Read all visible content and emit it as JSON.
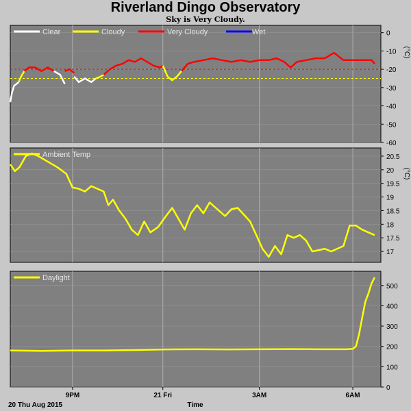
{
  "title": "Riverland Dingo Observatory",
  "subtitle": "Sky is Very Cloudy.",
  "bottom": {
    "date_label": "20 Thu Aug 2015",
    "axis_label": "Time"
  },
  "x_ticks": [
    {
      "t": 2.0,
      "label": "9PM"
    },
    {
      "t": 4.9,
      "label": "21 Fri"
    },
    {
      "t": 8.0,
      "label": "3AM"
    },
    {
      "t": 11.0,
      "label": "6AM"
    }
  ],
  "chart_data": [
    {
      "type": "line",
      "name": "sky",
      "legend": [
        "Clear",
        "Cloudy",
        "Very Cloudy",
        "Wet"
      ],
      "unit": "(°C)",
      "ylim": [
        -60,
        4
      ],
      "y_ticks": [
        0,
        -10,
        -20,
        -30,
        -40,
        -50,
        -60
      ],
      "thresholds": [
        {
          "value": -20,
          "color": "#ff0000"
        },
        {
          "value": -25,
          "color": "#ffff00"
        }
      ],
      "series": [
        {
          "name": "Clear",
          "color": "#ffffff",
          "points": [
            [
              0.0,
              -38
            ],
            [
              0.05,
              -33
            ],
            [
              0.12,
              -29
            ],
            [
              0.2,
              -28
            ],
            [
              0.27,
              -27
            ]
          ]
        },
        {
          "name": "Cloudy",
          "color": "#ffff00",
          "points": [
            [
              0.27,
              -27
            ],
            [
              0.32,
              -25
            ],
            [
              0.38,
              -23
            ],
            [
              0.45,
              -21
            ]
          ]
        },
        {
          "name": "Very Cloudy",
          "color": "#ff0000",
          "points": [
            [
              0.45,
              -21
            ],
            [
              0.6,
              -19
            ],
            [
              0.8,
              -19
            ],
            [
              1.0,
              -21
            ],
            [
              1.2,
              -19
            ],
            [
              1.4,
              -21
            ]
          ]
        },
        {
          "name": "Clear",
          "color": "#ffffff",
          "points": [
            [
              1.4,
              -21
            ],
            [
              1.6,
              -23
            ],
            [
              1.75,
              -28
            ]
          ]
        },
        {
          "name": "Very Cloudy",
          "color": "#ff0000",
          "points": [
            [
              1.75,
              -21
            ],
            [
              1.9,
              -20
            ],
            [
              2.05,
              -22
            ]
          ]
        },
        {
          "name": "Clear",
          "color": "#ffffff",
          "points": [
            [
              2.05,
              -24
            ],
            [
              2.2,
              -27
            ],
            [
              2.4,
              -25
            ],
            [
              2.6,
              -27
            ],
            [
              2.75,
              -25
            ]
          ]
        },
        {
          "name": "Cloudy",
          "color": "#ffff00",
          "points": [
            [
              2.75,
              -25
            ],
            [
              2.9,
              -24
            ],
            [
              3.0,
              -23
            ]
          ]
        },
        {
          "name": "Very Cloudy",
          "color": "#ff0000",
          "points": [
            [
              3.0,
              -23
            ],
            [
              3.2,
              -20
            ],
            [
              3.4,
              -18
            ],
            [
              3.6,
              -17
            ],
            [
              3.8,
              -15
            ],
            [
              4.0,
              -16
            ],
            [
              4.2,
              -14
            ],
            [
              4.4,
              -16
            ],
            [
              4.6,
              -18
            ],
            [
              4.8,
              -19
            ],
            [
              4.9,
              -18
            ]
          ]
        },
        {
          "name": "Cloudy",
          "color": "#ffff00",
          "points": [
            [
              4.9,
              -18
            ],
            [
              5.05,
              -24
            ],
            [
              5.2,
              -26
            ],
            [
              5.35,
              -24
            ],
            [
              5.5,
              -21
            ]
          ]
        },
        {
          "name": "Very Cloudy",
          "color": "#ff0000",
          "points": [
            [
              5.5,
              -21
            ],
            [
              5.7,
              -17
            ],
            [
              5.9,
              -16
            ],
            [
              6.2,
              -15
            ],
            [
              6.5,
              -14
            ],
            [
              6.8,
              -15
            ],
            [
              7.1,
              -16
            ],
            [
              7.4,
              -15
            ],
            [
              7.7,
              -16
            ],
            [
              8.0,
              -15
            ],
            [
              8.3,
              -15
            ],
            [
              8.55,
              -14
            ],
            [
              8.8,
              -16
            ],
            [
              9.0,
              -19
            ],
            [
              9.2,
              -16
            ],
            [
              9.5,
              -15
            ],
            [
              9.8,
              -14
            ],
            [
              10.1,
              -14
            ],
            [
              10.4,
              -11
            ],
            [
              10.7,
              -15
            ],
            [
              11.0,
              -15
            ],
            [
              11.3,
              -15
            ],
            [
              11.6,
              -15
            ],
            [
              11.7,
              -17
            ]
          ]
        }
      ]
    },
    {
      "type": "line",
      "name": "ambient",
      "legend": [
        "Ambient Temp"
      ],
      "unit": "(°C)",
      "ylim": [
        16.6,
        20.8
      ],
      "y_ticks": [
        20.5,
        20.0,
        19.5,
        19.0,
        18.5,
        18.0,
        17.5,
        17.0
      ],
      "series": [
        {
          "name": "Ambient Temp",
          "color": "#ffff00",
          "points": [
            [
              0.0,
              20.2
            ],
            [
              0.15,
              19.95
            ],
            [
              0.3,
              20.1
            ],
            [
              0.5,
              20.5
            ],
            [
              0.7,
              20.6
            ],
            [
              0.9,
              20.5
            ],
            [
              1.2,
              20.3
            ],
            [
              1.5,
              20.1
            ],
            [
              1.8,
              19.85
            ],
            [
              2.0,
              19.35
            ],
            [
              2.2,
              19.3
            ],
            [
              2.4,
              19.2
            ],
            [
              2.6,
              19.4
            ],
            [
              2.8,
              19.3
            ],
            [
              3.0,
              19.2
            ],
            [
              3.15,
              18.7
            ],
            [
              3.3,
              18.9
            ],
            [
              3.5,
              18.5
            ],
            [
              3.7,
              18.2
            ],
            [
              3.9,
              17.8
            ],
            [
              4.1,
              17.6
            ],
            [
              4.3,
              18.1
            ],
            [
              4.5,
              17.7
            ],
            [
              4.75,
              17.9
            ],
            [
              5.0,
              18.3
            ],
            [
              5.2,
              18.6
            ],
            [
              5.4,
              18.2
            ],
            [
              5.6,
              17.8
            ],
            [
              5.8,
              18.4
            ],
            [
              6.0,
              18.7
            ],
            [
              6.2,
              18.4
            ],
            [
              6.4,
              18.8
            ],
            [
              6.7,
              18.5
            ],
            [
              6.9,
              18.3
            ],
            [
              7.1,
              18.55
            ],
            [
              7.3,
              18.6
            ],
            [
              7.5,
              18.35
            ],
            [
              7.7,
              18.1
            ],
            [
              7.9,
              17.6
            ],
            [
              8.1,
              17.1
            ],
            [
              8.3,
              16.8
            ],
            [
              8.5,
              17.2
            ],
            [
              8.7,
              16.9
            ],
            [
              8.9,
              17.6
            ],
            [
              9.1,
              17.5
            ],
            [
              9.3,
              17.6
            ],
            [
              9.5,
              17.4
            ],
            [
              9.7,
              17.0
            ],
            [
              9.9,
              17.05
            ],
            [
              10.1,
              17.1
            ],
            [
              10.3,
              17.0
            ],
            [
              10.5,
              17.1
            ],
            [
              10.7,
              17.2
            ],
            [
              10.9,
              17.95
            ],
            [
              11.1,
              17.95
            ],
            [
              11.3,
              17.8
            ],
            [
              11.5,
              17.7
            ],
            [
              11.7,
              17.6
            ]
          ]
        }
      ]
    },
    {
      "type": "line",
      "name": "daylight",
      "legend": [
        "Daylight"
      ],
      "unit": "",
      "ylim": [
        0,
        570
      ],
      "y_ticks": [
        500,
        400,
        300,
        200,
        100,
        0
      ],
      "series": [
        {
          "name": "Daylight",
          "color": "#ffff00",
          "points": [
            [
              0.0,
              180
            ],
            [
              1.0,
              178
            ],
            [
              2.0,
              180
            ],
            [
              3.0,
              180
            ],
            [
              4.0,
              182
            ],
            [
              5.0,
              185
            ],
            [
              6.0,
              186
            ],
            [
              7.0,
              185
            ],
            [
              8.0,
              186
            ],
            [
              9.0,
              187
            ],
            [
              10.0,
              186
            ],
            [
              10.8,
              186
            ],
            [
              11.0,
              188
            ],
            [
              11.1,
              200
            ],
            [
              11.2,
              260
            ],
            [
              11.3,
              340
            ],
            [
              11.4,
              420
            ],
            [
              11.5,
              460
            ],
            [
              11.6,
              510
            ],
            [
              11.7,
              540
            ]
          ]
        }
      ]
    }
  ]
}
